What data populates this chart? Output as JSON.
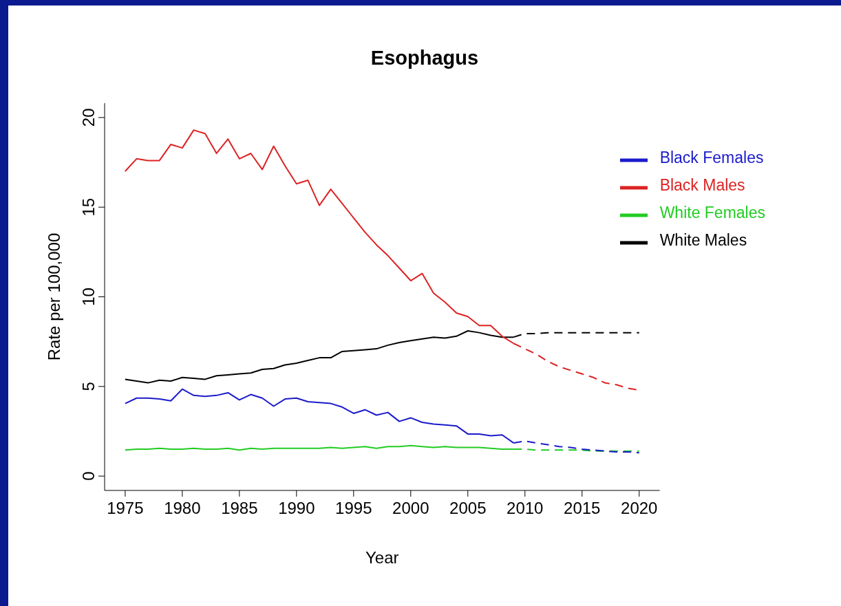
{
  "chart_data": {
    "type": "line",
    "title": "Esophagus",
    "xlabel": "Year",
    "ylabel": "Rate per 100,000",
    "x": [
      1975,
      1976,
      1977,
      1978,
      1979,
      1980,
      1981,
      1982,
      1983,
      1984,
      1985,
      1986,
      1987,
      1988,
      1989,
      1990,
      1991,
      1992,
      1993,
      1994,
      1995,
      1996,
      1997,
      1998,
      1999,
      2000,
      2001,
      2002,
      2003,
      2004,
      2005,
      2006,
      2007,
      2008,
      2009
    ],
    "series": [
      {
        "name": "White Males",
        "color": "#000000",
        "line_style": "solid",
        "values": [
          5.4,
          5.3,
          5.2,
          5.35,
          5.3,
          5.5,
          5.45,
          5.4,
          5.6,
          5.65,
          5.7,
          5.75,
          5.95,
          6.0,
          6.2,
          6.3,
          6.45,
          6.6,
          6.6,
          6.95,
          7.0,
          7.05,
          7.1,
          7.3,
          7.45,
          7.55,
          7.65,
          7.75,
          7.7,
          7.8,
          8.1,
          8.0,
          7.85,
          7.75,
          7.75
        ]
      },
      {
        "name": "Black Males",
        "color": "#dd2222",
        "line_style": "solid",
        "values": [
          17.0,
          17.7,
          17.6,
          17.6,
          18.5,
          18.3,
          19.3,
          19.1,
          18.0,
          18.8,
          17.7,
          18.0,
          17.1,
          18.4,
          17.3,
          16.3,
          16.5,
          15.1,
          16.0,
          15.2,
          14.4,
          13.6,
          12.9,
          12.3,
          11.6,
          10.9,
          11.3,
          10.2,
          9.7,
          9.1,
          8.9,
          8.4,
          8.4,
          7.8,
          7.4
        ]
      },
      {
        "name": "White Females",
        "color": "#22cc22",
        "line_style": "solid",
        "values": [
          1.45,
          1.5,
          1.5,
          1.55,
          1.5,
          1.5,
          1.55,
          1.5,
          1.5,
          1.55,
          1.45,
          1.55,
          1.5,
          1.55,
          1.55,
          1.55,
          1.55,
          1.55,
          1.6,
          1.55,
          1.6,
          1.65,
          1.55,
          1.65,
          1.65,
          1.7,
          1.65,
          1.6,
          1.65,
          1.6,
          1.6,
          1.6,
          1.55,
          1.5,
          1.5
        ]
      },
      {
        "name": "Black Females",
        "color": "#1a1acc",
        "line_style": "solid",
        "values": [
          4.05,
          4.35,
          4.35,
          4.3,
          4.2,
          4.85,
          4.5,
          4.45,
          4.5,
          4.65,
          4.25,
          4.55,
          4.35,
          3.9,
          4.3,
          4.35,
          4.15,
          4.1,
          4.05,
          3.85,
          3.5,
          3.7,
          3.4,
          3.55,
          3.05,
          3.25,
          3.0,
          2.9,
          2.85,
          2.8,
          2.35,
          2.35,
          2.25,
          2.3,
          1.85
        ]
      },
      {
        "color": "#000000",
        "line_style": "dashed",
        "x": [
          2009,
          2010,
          2011,
          2012,
          2013,
          2014,
          2015,
          2016,
          2017,
          2018,
          2019,
          2020
        ],
        "values": [
          7.75,
          7.95,
          7.95,
          8.0,
          8.0,
          8.0,
          8.0,
          8.0,
          8.0,
          8.0,
          8.0,
          8.0
        ]
      },
      {
        "color": "#dd2222",
        "line_style": "dashed",
        "x": [
          2009,
          2010,
          2011,
          2012,
          2013,
          2014,
          2015,
          2016,
          2017,
          2018,
          2019,
          2020
        ],
        "values": [
          7.4,
          7.1,
          6.8,
          6.4,
          6.1,
          5.9,
          5.7,
          5.5,
          5.2,
          5.1,
          4.9,
          4.8
        ]
      },
      {
        "color": "#22cc22",
        "line_style": "dashed",
        "x": [
          2009,
          2010,
          2011,
          2012,
          2013,
          2014,
          2015,
          2016,
          2017,
          2018,
          2019,
          2020
        ],
        "values": [
          1.5,
          1.5,
          1.45,
          1.45,
          1.45,
          1.45,
          1.45,
          1.4,
          1.4,
          1.4,
          1.4,
          1.4
        ]
      },
      {
        "color": "#1a1acc",
        "line_style": "dashed",
        "x": [
          2009,
          2010,
          2011,
          2012,
          2013,
          2014,
          2015,
          2016,
          2017,
          2018,
          2019,
          2020
        ],
        "values": [
          1.85,
          1.95,
          1.85,
          1.75,
          1.65,
          1.6,
          1.5,
          1.45,
          1.4,
          1.35,
          1.35,
          1.3
        ]
      }
    ],
    "xlim": [
      1973.2,
      2021.8
    ],
    "xticks": [
      1975,
      1980,
      1985,
      1990,
      1995,
      2000,
      2005,
      2010,
      2015,
      2020
    ],
    "ylim": [
      -0.8,
      20.8
    ],
    "yticks": [
      0,
      5,
      10,
      15,
      20
    ],
    "grid": false,
    "legend": "top right",
    "marker": "none"
  }
}
